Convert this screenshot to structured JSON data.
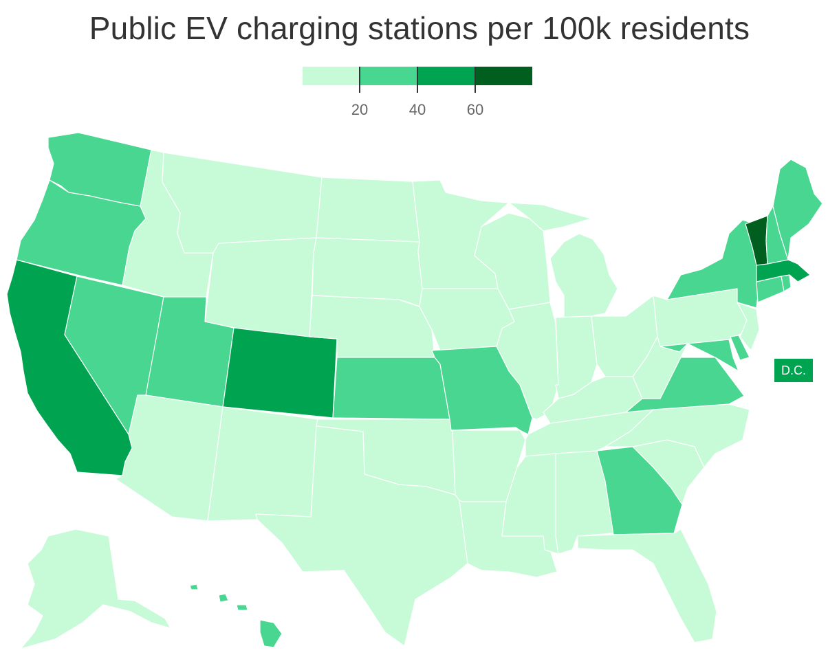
{
  "title": "Public EV charging stations per 100k residents",
  "legend": {
    "bins": [
      {
        "max": 20,
        "color": "#c7fbd8"
      },
      {
        "max": 40,
        "color": "#48d690"
      },
      {
        "max": 60,
        "color": "#00a450"
      },
      {
        "max": 80,
        "color": "#005f1e"
      }
    ],
    "ticks": [
      {
        "value": 20,
        "label": "20"
      },
      {
        "value": 40,
        "label": "40"
      },
      {
        "value": 60,
        "label": "60"
      }
    ]
  },
  "states": {
    "WA": 2,
    "OR": 2,
    "CA": 3,
    "NV": 2,
    "ID": 1,
    "MT": 1,
    "WY": 1,
    "UT": 2,
    "AZ": 1,
    "CO": 3,
    "NM": 1,
    "ND": 1,
    "SD": 1,
    "NE": 1,
    "KS": 2,
    "OK": 1,
    "TX": 1,
    "MN": 1,
    "IA": 1,
    "MO": 2,
    "AR": 1,
    "LA": 1,
    "WI": 1,
    "IL": 1,
    "MI": 1,
    "IN": 1,
    "OH": 1,
    "KY": 1,
    "TN": 1,
    "MS": 1,
    "AL": 1,
    "GA": 2,
    "FL": 1,
    "SC": 1,
    "NC": 1,
    "VA": 2,
    "WV": 1,
    "MD": 2,
    "DE": 2,
    "PA": 1,
    "NJ": 1,
    "NY": 2,
    "CT": 2,
    "RI": 2,
    "MA": 3,
    "VT": 4,
    "NH": 2,
    "ME": 2,
    "AK": 1,
    "HI": 2,
    "DC": 3
  },
  "dc_label": "D.C."
}
